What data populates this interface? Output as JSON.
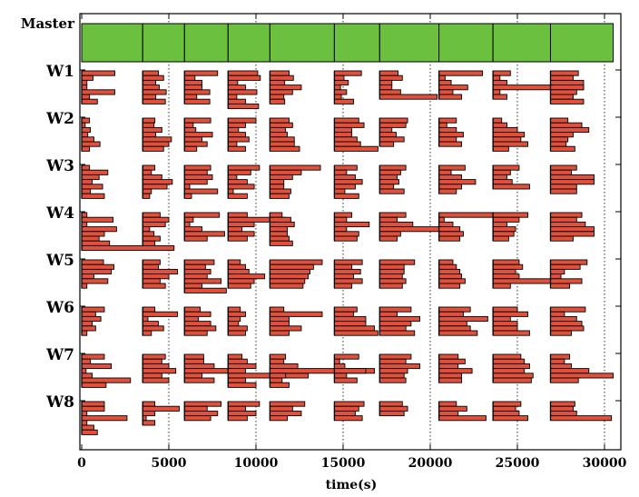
{
  "chart_data": {
    "type": "bar",
    "subtype": "gantt",
    "xlabel": "time(s)",
    "xlim": [
      0,
      30800
    ],
    "xticks": [
      0,
      5000,
      10000,
      15000,
      20000,
      25000,
      30000
    ],
    "grid": "vertical dotted",
    "lanes": [
      "Master",
      "W1",
      "W2",
      "W3",
      "W4",
      "W5",
      "W6",
      "W7",
      "W8"
    ],
    "colors": {
      "master": "#6cc040",
      "task": "#e0503a",
      "edge": "#000000"
    },
    "master_boundaries": [
      0,
      3500,
      5900,
      8400,
      10800,
      14500,
      17100,
      20500,
      23600,
      26900,
      30500
    ],
    "workers": [
      {
        "name": "W1",
        "blocks": [
          {
            "start": 0,
            "lens": [
              1900,
              650,
              300,
              300,
              1900,
              450,
              900
            ]
          },
          {
            "start": 3500,
            "lens": [
              900,
              1200,
              750,
              950,
              1350,
              750,
              1300
            ]
          },
          {
            "start": 5900,
            "lens": [
              1900,
              600,
              1000,
              1000,
              1450,
              700,
              1450
            ]
          },
          {
            "start": 8400,
            "lens": [
              1700,
              1850,
              550,
              1000,
              1650,
              500,
              1000,
              1750
            ]
          },
          {
            "start": 10800,
            "lens": [
              1100,
              1350,
              850,
              1800,
              1300,
              800,
              850
            ]
          },
          {
            "start": 14500,
            "lens": [
              1550,
              550,
              800,
              350,
              700,
              400,
              1100
            ]
          },
          {
            "start": 17100,
            "lens": [
              1050,
              1300,
              700,
              700,
              1200,
              3300
            ]
          },
          {
            "start": 20500,
            "lens": [
              2500,
              350,
              700,
              1650,
              800,
              1300
            ]
          },
          {
            "start": 23600,
            "lens": [
              1000,
              400,
              800,
              5200,
              400,
              800
            ]
          },
          {
            "start": 26900,
            "lens": [
              1600,
              1300,
              1900,
              1900,
              1500,
              1300,
              1900
            ]
          }
        ]
      },
      {
        "name": "W2",
        "blocks": [
          {
            "start": 0,
            "lens": [
              450,
              200,
              500,
              350,
              700,
              1050,
              450
            ]
          },
          {
            "start": 3500,
            "lens": [
              700,
              650,
              1100,
              750,
              1650,
              1500,
              1200
            ]
          },
          {
            "start": 5900,
            "lens": [
              1500,
              500,
              650,
              1600,
              1000,
              1300,
              700
            ]
          },
          {
            "start": 8400,
            "lens": [
              1600,
              1000,
              600,
              1000,
              1200,
              500,
              1000
            ]
          },
          {
            "start": 10800,
            "lens": [
              1100,
              1300,
              900,
              1000,
              1400,
              1400,
              1700
            ]
          },
          {
            "start": 14500,
            "lens": [
              1400,
              1700,
              1000,
              1000,
              1300,
              1500,
              2500
            ]
          },
          {
            "start": 17100,
            "lens": [
              1600,
              1500,
              700,
              950,
              1400,
              800
            ]
          },
          {
            "start": 20500,
            "lens": [
              1000,
              450,
              1000,
              1400,
              1000,
              1300
            ]
          },
          {
            "start": 23600,
            "lens": [
              500,
              800,
              1400,
              1800,
              1600,
              2000,
              900
            ]
          },
          {
            "start": 26900,
            "lens": [
              1000,
              1800,
              2200,
              1300,
              1000,
              900,
              1400
            ]
          }
        ]
      },
      {
        "name": "W3",
        "blocks": [
          {
            "start": 0,
            "lens": [
              450,
              1500,
              1000,
              600,
              1200,
              500,
              1300
            ]
          },
          {
            "start": 3500,
            "lens": [
              700,
              500,
              1100,
              1700,
              1400,
              500,
              400
            ]
          },
          {
            "start": 5900,
            "lens": [
              1500,
              1300,
              1600,
              1300,
              300,
              1900,
              400
            ]
          },
          {
            "start": 8400,
            "lens": [
              1800,
              1300,
              500,
              1100,
              1500,
              300,
              1100
            ]
          },
          {
            "start": 10800,
            "lens": [
              2900,
              1800,
              1300,
              800,
              800,
              1200,
              1100
            ]
          },
          {
            "start": 14500,
            "lens": [
              1300,
              700,
              1200,
              1600,
              1200,
              600,
              1400
            ]
          },
          {
            "start": 17100,
            "lens": [
              1500,
              1200,
              1000,
              1100,
              800,
              1400
            ]
          },
          {
            "start": 20500,
            "lens": [
              1500,
              700,
              1300,
              2100,
              1300,
              1000
            ]
          },
          {
            "start": 23600,
            "lens": [
              1500,
              1000,
              800,
              1100,
              2100
            ]
          },
          {
            "start": 26900,
            "lens": [
              1500,
              1200,
              2500,
              2500,
              1500,
              1500
            ]
          }
        ]
      },
      {
        "name": "W4",
        "blocks": [
          {
            "start": 0,
            "lens": [
              300,
              1800,
              300,
              2000,
              1300,
              1000,
              1600,
              5300
            ]
          },
          {
            "start": 3500,
            "lens": [
              1000,
              1500,
              1300,
              400,
              650,
              1000,
              700
            ]
          },
          {
            "start": 5900,
            "lens": [
              2000,
              500,
              300,
              1000,
              2300,
              1300
            ]
          },
          {
            "start": 8400,
            "lens": [
              1100,
              3300,
              1500,
              800,
              1500,
              1100
            ]
          },
          {
            "start": 10800,
            "lens": [
              700,
              1200,
              1400,
              1000,
              1000,
              1100,
              1300
            ]
          },
          {
            "start": 14500,
            "lens": [
              1000,
              700,
              2000,
              700,
              1400,
              1300
            ]
          },
          {
            "start": 17100,
            "lens": [
              1500,
              1000,
              1900,
              3500,
              1200,
              1000
            ]
          },
          {
            "start": 20500,
            "lens": [
              3100,
              300,
              800,
              1200,
              1400,
              1200
            ]
          },
          {
            "start": 23600,
            "lens": [
              2000,
              1500,
              800,
              1300,
              1200,
              900
            ]
          },
          {
            "start": 26900,
            "lens": [
              1800,
              1500,
              2000,
              2500,
              2500,
              1300
            ]
          }
        ]
      },
      {
        "name": "W5",
        "blocks": [
          {
            "start": 0,
            "lens": [
              1250,
              1850,
              1700,
              700,
              1500,
              300
            ]
          },
          {
            "start": 3500,
            "lens": [
              1000,
              900,
              2000,
              1500,
              1000,
              1300
            ]
          },
          {
            "start": 5900,
            "lens": [
              1700,
              1200,
              1500,
              1300,
              2100,
              1000,
              2400
            ]
          },
          {
            "start": 8400,
            "lens": [
              700,
              1000,
              1200,
              2100,
              1500,
              1300
            ]
          },
          {
            "start": 10800,
            "lens": [
              3000,
              2500,
              2300,
              2200,
              2000,
              1900
            ]
          },
          {
            "start": 14500,
            "lens": [
              1600,
              1000,
              1500,
              1100,
              1600,
              1000
            ]
          },
          {
            "start": 17100,
            "lens": [
              2000,
              1400,
              1400,
              1300,
              1500,
              1300
            ]
          },
          {
            "start": 20500,
            "lens": [
              800,
              1000,
              1200,
              1300,
              1500,
              1200
            ]
          },
          {
            "start": 23600,
            "lens": [
              1500,
              1700,
              1300,
              1500,
              3300,
              1000
            ]
          },
          {
            "start": 26900,
            "lens": [
              2100,
              1700,
              800,
              600,
              1800,
              1100
            ]
          }
        ]
      },
      {
        "name": "W6",
        "blocks": [
          {
            "start": 0,
            "lens": [
              1300,
              800,
              1100,
              600,
              800,
              300
            ]
          },
          {
            "start": 3500,
            "lens": [
              700,
              2000,
              300,
              900,
              1200,
              500
            ]
          },
          {
            "start": 5900,
            "lens": [
              900,
              1500,
              800,
              1500,
              1800,
              1300
            ]
          },
          {
            "start": 8400,
            "lens": [
              700,
              1000,
              700,
              600,
              1100,
              1000
            ]
          },
          {
            "start": 10800,
            "lens": [
              800,
              3000,
              1100,
              1100,
              1800,
              1100
            ]
          },
          {
            "start": 14500,
            "lens": [
              1300,
              1100,
              1800,
              1800,
              2300,
              2500
            ]
          },
          {
            "start": 17100,
            "lens": [
              1800,
              1000,
              2300,
              1800,
              1500,
              2000
            ]
          },
          {
            "start": 20500,
            "lens": [
              1800,
              1400,
              2800,
              1600,
              1800,
              2200
            ]
          },
          {
            "start": 23600,
            "lens": [
              1400,
              2000,
              1000,
              1400,
              1400,
              2100
            ]
          },
          {
            "start": 26900,
            "lens": [
              2000,
              800,
              1500,
              1800,
              1900,
              1200
            ]
          }
        ]
      },
      {
        "name": "W7",
        "blocks": [
          {
            "start": 0,
            "lens": [
              1300,
              500,
              1700,
              250,
              600,
              2800,
              1400
            ]
          },
          {
            "start": 3500,
            "lens": [
              1300,
              1100,
              1500,
              1900,
              1100,
              1500
            ]
          },
          {
            "start": 5900,
            "lens": [
              1100,
              1100,
              1700,
              2500,
              1000,
              1700
            ]
          },
          {
            "start": 8400,
            "lens": [
              800,
              1100,
              1600,
              1000,
              4600,
              1000,
              1600
            ]
          },
          {
            "start": 10800,
            "lens": [
              900,
              800,
              1600,
              6000,
              900,
              700,
              1100
            ]
          },
          {
            "start": 14500,
            "lens": [
              1400,
              300,
              600,
              1800,
              700,
              1300
            ]
          },
          {
            "start": 17100,
            "lens": [
              1800,
              1500,
              2300,
              1600,
              1400,
              1500
            ]
          },
          {
            "start": 20500,
            "lens": [
              1100,
              1500,
              1100,
              1900,
              1300,
              1300
            ]
          },
          {
            "start": 23600,
            "lens": [
              1600,
              1800,
              2100,
              1800,
              2300,
              2200
            ]
          },
          {
            "start": 26900,
            "lens": [
              1100,
              800,
              1200,
              2200,
              3600,
              1600
            ]
          }
        ]
      },
      {
        "name": "W8",
        "blocks": [
          {
            "start": 0,
            "lens": [
              1300,
              1300,
              300,
              2600,
              300,
              700,
              900
            ]
          },
          {
            "start": 3500,
            "lens": [
              700,
              2100,
              700,
              200,
              700
            ]
          },
          {
            "start": 5900,
            "lens": [
              2100,
              1300,
              1900,
              1500
            ]
          },
          {
            "start": 8400,
            "lens": [
              1800,
              1000,
              1600,
              1100
            ]
          },
          {
            "start": 10800,
            "lens": [
              2000,
              1300,
              1800,
              1000
            ]
          },
          {
            "start": 14500,
            "lens": [
              1700,
              1400,
              1200,
              1600
            ]
          },
          {
            "start": 17100,
            "lens": [
              1300,
              1600,
              1400
            ]
          },
          {
            "start": 20500,
            "lens": [
              1000,
              1600,
              1100,
              2700
            ]
          },
          {
            "start": 23600,
            "lens": [
              1600,
              1300,
              1500,
              2000
            ]
          },
          {
            "start": 26900,
            "lens": [
              1400,
              1300,
              1500,
              3500
            ]
          }
        ]
      }
    ]
  }
}
